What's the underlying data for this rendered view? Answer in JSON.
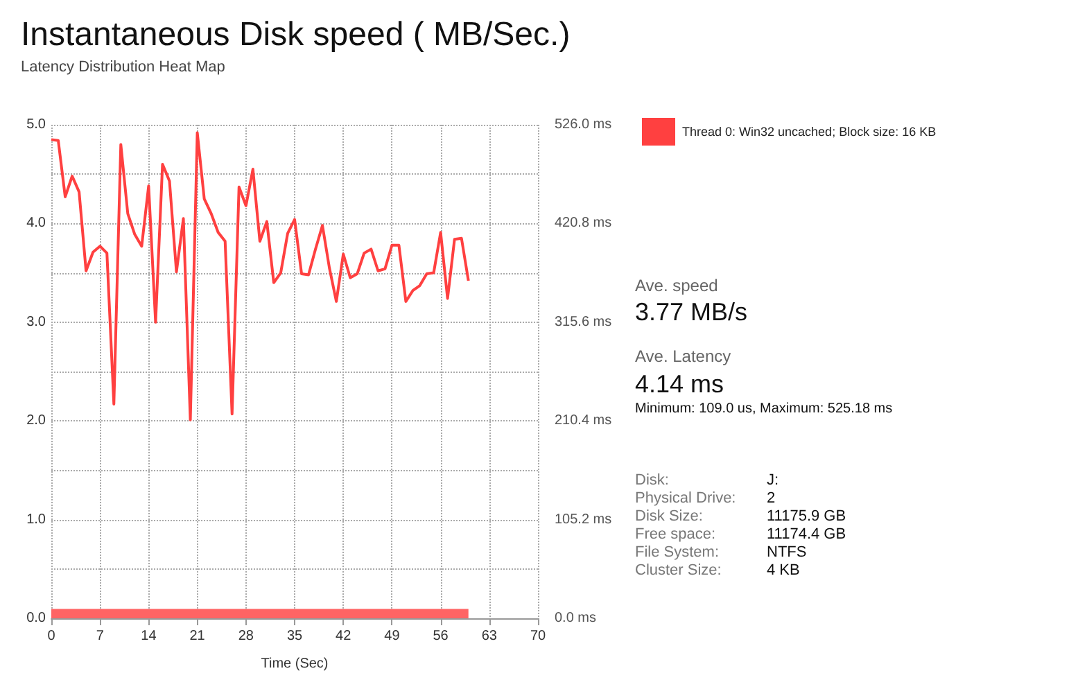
{
  "chart_data": {
    "type": "line",
    "title": "Instantaneous Disk speed ( MB/Sec.)",
    "subtitle": "Latency Distribution Heat Map",
    "xlabel": "Time (Sec)",
    "xlim": [
      0,
      70
    ],
    "xticks": [
      0,
      7,
      14,
      21,
      28,
      35,
      42,
      49,
      56,
      63,
      70
    ],
    "ylim": [
      0,
      5
    ],
    "yticks": [
      {
        "value": 0,
        "label": "0.0"
      },
      {
        "value": 0.5,
        "label": null
      },
      {
        "value": 1,
        "label": "1.0"
      },
      {
        "value": 1.5,
        "label": null
      },
      {
        "value": 2,
        "label": "2.0"
      },
      {
        "value": 2.5,
        "label": null
      },
      {
        "value": 3,
        "label": "3.0"
      },
      {
        "value": 3.5,
        "label": null
      },
      {
        "value": 4,
        "label": "4.0"
      },
      {
        "value": 4.5,
        "label": null
      },
      {
        "value": 5,
        "label": "5.0"
      }
    ],
    "y2lim": [
      0,
      526
    ],
    "y2ticks": [
      {
        "value": 0,
        "label": "0.0 ms"
      },
      {
        "value": 105.2,
        "label": "105.2 ms"
      },
      {
        "value": 210.4,
        "label": "210.4 ms"
      },
      {
        "value": 315.6,
        "label": "315.6 ms"
      },
      {
        "value": 420.8,
        "label": "420.8 ms"
      },
      {
        "value": 526,
        "label": "526.0 ms"
      }
    ],
    "grid": true,
    "legend": "top right",
    "marker": "none",
    "line_style": "solid",
    "series": [
      {
        "name": "Thread 0: Win32 uncached; Block size: 16 KB",
        "color": "#ff4040",
        "x": [
          0,
          1,
          2,
          3,
          4,
          5,
          6,
          7,
          8,
          9,
          10,
          11,
          12,
          13,
          14,
          15,
          16,
          17,
          18,
          19,
          20,
          21,
          22,
          23,
          24,
          25,
          26,
          27,
          28,
          29,
          30,
          31,
          32,
          33,
          34,
          35,
          36,
          37,
          38,
          39,
          40,
          41,
          42,
          43,
          44,
          45,
          46,
          47,
          48,
          49,
          50,
          51,
          52,
          53,
          54,
          55,
          56,
          57,
          58,
          59,
          60
        ],
        "values": [
          4.85,
          4.84,
          4.27,
          4.48,
          4.32,
          3.52,
          3.71,
          3.77,
          3.7,
          2.17,
          4.8,
          4.1,
          3.89,
          3.77,
          4.38,
          3.0,
          4.6,
          4.43,
          3.51,
          4.05,
          2.01,
          4.92,
          4.25,
          4.1,
          3.91,
          3.82,
          2.07,
          4.37,
          4.18,
          4.55,
          3.82,
          4.02,
          3.4,
          3.5,
          3.9,
          4.04,
          3.49,
          3.48,
          3.74,
          3.98,
          3.55,
          3.21,
          3.69,
          3.45,
          3.49,
          3.7,
          3.74,
          3.52,
          3.54,
          3.78,
          3.78,
          3.21,
          3.32,
          3.37,
          3.49,
          3.5,
          3.91,
          3.24,
          3.84,
          3.85,
          3.42
        ]
      },
      {
        "type": "area",
        "axis": "y2",
        "color": "#ff6464",
        "x": [
          0,
          60
        ],
        "values": [
          10,
          10
        ]
      }
    ],
    "annotations": [
      "Ave. speed",
      "3.77 MB/s",
      "Ave. Latency",
      "4.14 ms",
      "Minimum: 109.0 us, Maximum: 525.18 ms",
      "Disk:",
      "J:",
      "Physical Drive:",
      "2",
      "Disk Size:",
      "11175.9 GB",
      "Free space:",
      "11174.4 GB",
      "File System:",
      "NTFS",
      "Cluster Size:",
      "4 KB"
    ]
  }
}
